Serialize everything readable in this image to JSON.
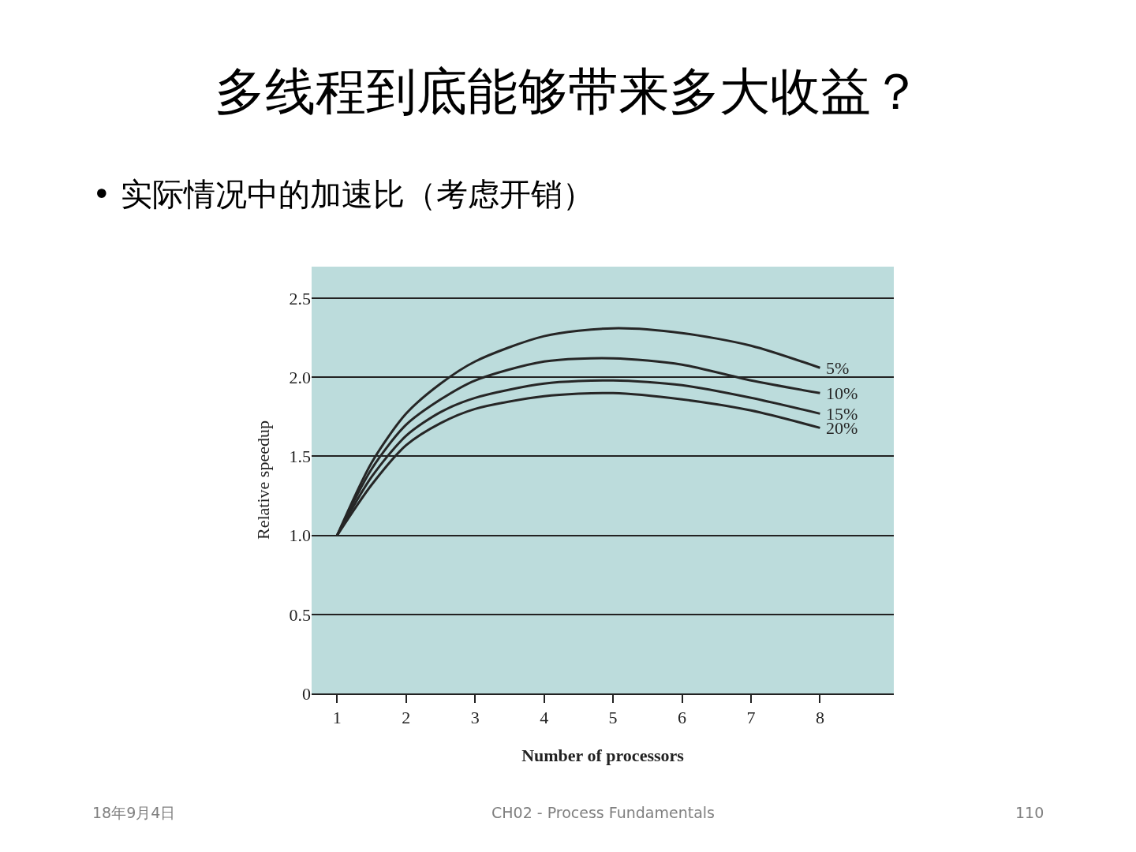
{
  "chart_data": {
    "type": "line",
    "title": "多线程到底能够带来多大收益？",
    "subtitle": "• 实际情况中的加速比（考虑开销）",
    "xlabel": "Number of processors",
    "ylabel": "Relative speedup",
    "x": [
      1,
      1.5,
      2,
      2.5,
      3,
      4,
      5,
      6,
      7,
      8
    ],
    "series": [
      {
        "name": "5%",
        "color": "#262626",
        "values": [
          1.0,
          1.46,
          1.77,
          1.96,
          2.1,
          2.26,
          2.31,
          2.28,
          2.2,
          2.06
        ]
      },
      {
        "name": "10%",
        "color": "#262626",
        "values": [
          1.0,
          1.42,
          1.7,
          1.86,
          1.98,
          2.1,
          2.12,
          2.08,
          1.98,
          1.9
        ]
      },
      {
        "name": "15%",
        "color": "#262626",
        "values": [
          1.0,
          1.37,
          1.63,
          1.78,
          1.87,
          1.96,
          1.98,
          1.95,
          1.87,
          1.77
        ]
      },
      {
        "name": "20%",
        "color": "#262626",
        "values": [
          1.0,
          1.32,
          1.57,
          1.71,
          1.8,
          1.88,
          1.9,
          1.86,
          1.79,
          1.68
        ]
      }
    ],
    "xlim": [
      0.63,
      9.07
    ],
    "xticks": [
      1,
      2,
      3,
      4,
      5,
      6,
      7,
      8
    ],
    "ylim": [
      0,
      2.7
    ],
    "yticks": [
      0,
      0.5,
      {
        "value": 1,
        "label": "1.0"
      },
      1.5,
      {
        "value": 2,
        "label": "2.0"
      },
      2.5
    ],
    "grid": "y",
    "legend": false,
    "marker": "none",
    "line_style": "solid",
    "annotations": [
      "18年9月4日",
      "CH02 - Process Fundamentals",
      "110"
    ]
  }
}
